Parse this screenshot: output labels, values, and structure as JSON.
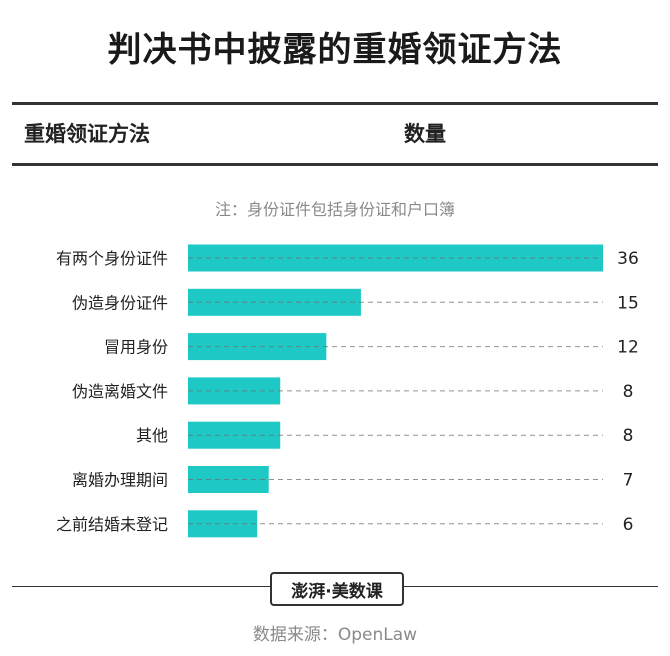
{
  "title": "判决书中披露的重婚领证方法",
  "header": {
    "left": "重婚领证方法",
    "right": "数量"
  },
  "note": "注：身份证件包括身份证和户口簿",
  "logo_text": "澎湃·美数课",
  "source": "数据来源：OpenLaw",
  "colors": {
    "bar": "#1ec8c4",
    "text": "#222222",
    "muted": "#8a8a8a",
    "rule": "#333333"
  },
  "chart_data": {
    "type": "bar",
    "orientation": "horizontal",
    "categories": [
      "有两个身份证件",
      "伪造身份证件",
      "冒用身份",
      "伪造离婚文件",
      "其他",
      "离婚办理期间",
      "之前结婚未登记"
    ],
    "values": [
      36,
      15,
      12,
      8,
      8,
      7,
      6
    ],
    "xlim": [
      0,
      36
    ],
    "grid": false
  }
}
